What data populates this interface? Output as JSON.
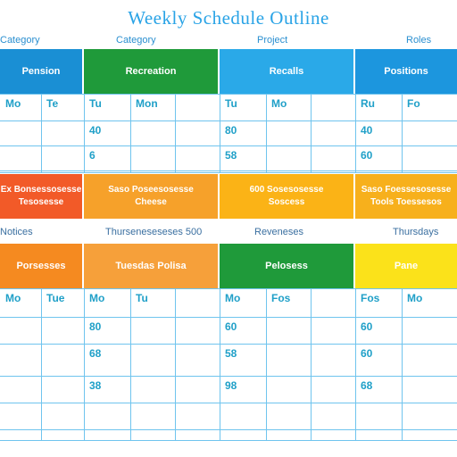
{
  "title": "Weekly Schedule Outline",
  "top_labels": [
    "Category",
    "Project",
    "Roles"
  ],
  "section_a": {
    "headers": [
      {
        "label": "Pension",
        "color": "#1a8fd4",
        "text_color": "#ffffff"
      },
      {
        "label": "Recreation",
        "color": "#1f9a3a",
        "text_color": "#ffffff"
      },
      {
        "label": "Recalls",
        "color": "#2aa9e8",
        "text_color": "#ffffff"
      },
      {
        "label": "Positions",
        "color": "#1c96de",
        "text_color": "#ffffff"
      }
    ],
    "row1": [
      "Mo",
      "Te",
      "Tu",
      "Mon",
      "Tu",
      "Mo",
      "Ru",
      "Fo"
    ],
    "row2": [
      "",
      "",
      "40",
      "",
      "80",
      "",
      "40",
      ""
    ],
    "row3": [
      "",
      "",
      "6",
      "",
      "58",
      "",
      "60",
      ""
    ]
  },
  "band": [
    {
      "line1": "Ex Bonsessosesse",
      "line2": "Tesosesse",
      "color": "#f25a28"
    },
    {
      "line1": "Saso Poseesosesse",
      "line2": "Cheese",
      "color": "#f6a12a"
    },
    {
      "line1": "600 Sosesosesse",
      "line2": "Soscess",
      "color": "#fbb316"
    },
    {
      "line1": "Saso Foessesosesse",
      "line2": "Tools Toessesos",
      "color": "#f7b01c"
    }
  ],
  "section_b": {
    "labels": [
      "Notices",
      "Thurseneseseses 500",
      "Reveneses",
      "Thursdays"
    ],
    "headers": [
      {
        "label": "Porsesses",
        "color": "#f58a20",
        "text_color": "#ffffff"
      },
      {
        "label": "Tuesdas Polisa",
        "color": "#f6a03a",
        "text_color": "#ffffff"
      },
      {
        "label": "Pelosess",
        "color": "#1f9a3a",
        "text_color": "#ffffff"
      },
      {
        "label": "Pane",
        "color": "#fbe21a",
        "text_color": "#ffffff"
      }
    ],
    "row1": [
      "Mo",
      "Tue",
      "Mo",
      "Tu",
      "Mo",
      "Fos",
      "Fos",
      "Mo"
    ],
    "row2": [
      "",
      "",
      "80",
      "",
      "60",
      "",
      "60",
      ""
    ],
    "row3": [
      "",
      "",
      "68",
      "",
      "58",
      "",
      "60",
      ""
    ],
    "row4": [
      "",
      "",
      "38",
      "",
      "98",
      "",
      "68",
      ""
    ]
  }
}
